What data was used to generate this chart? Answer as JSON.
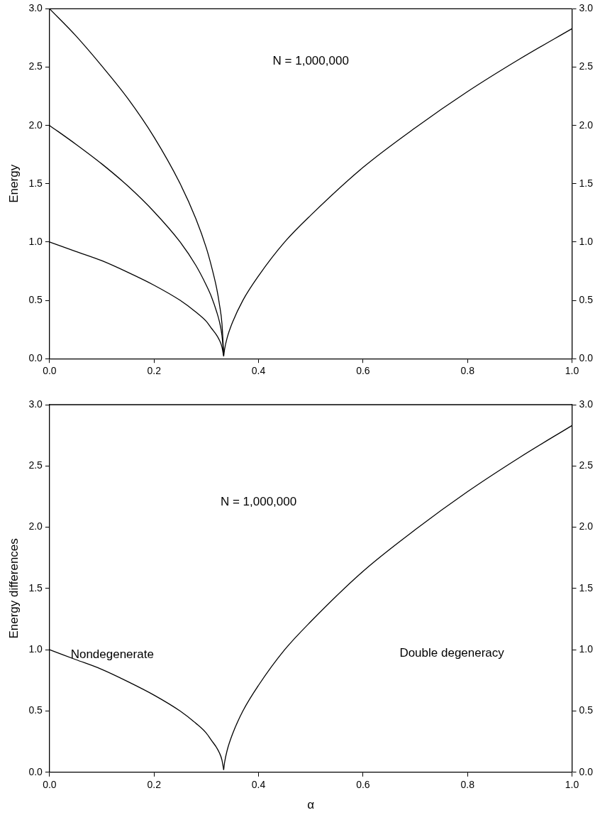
{
  "chart_data": [
    {
      "type": "line",
      "ylabel": "Energy",
      "xlim": [
        0,
        1
      ],
      "xticks": [
        {
          "value": 0,
          "label": "0.0"
        },
        {
          "value": 0.2,
          "label": "0.2"
        },
        {
          "value": 0.4,
          "label": "0.4"
        },
        {
          "value": 0.6,
          "label": "0.6"
        },
        {
          "value": 0.8,
          "label": "0.8"
        },
        {
          "value": 1,
          "label": "1.0"
        }
      ],
      "ylim": [
        0,
        3
      ],
      "yticks": [
        {
          "value": 0,
          "label": "0.0"
        },
        {
          "value": 0.5,
          "label": "0.5"
        },
        {
          "value": 1,
          "label": "1.0"
        },
        {
          "value": 1.5,
          "label": "1.5"
        },
        {
          "value": 2,
          "label": "2.0"
        },
        {
          "value": 2.5,
          "label": "2.5"
        },
        {
          "value": 3,
          "label": "3.0"
        }
      ],
      "y2lim": [
        0,
        3
      ],
      "y2ticks": [
        {
          "value": 0,
          "label": "0.0"
        },
        {
          "value": 0.5,
          "label": "0.5"
        },
        {
          "value": 1,
          "label": "1.0"
        },
        {
          "value": 1.5,
          "label": "1.5"
        },
        {
          "value": 2,
          "label": "2.0"
        },
        {
          "value": 2.5,
          "label": "2.5"
        },
        {
          "value": 3,
          "label": "3.0"
        }
      ],
      "grid": false,
      "legend": false,
      "marker": "none",
      "line_style": "solid",
      "annotations": [
        "N = 1,000,000"
      ],
      "series": [
        {
          "color": "#000000",
          "x": [
            0,
            0.05,
            0.1,
            0.15,
            0.2,
            0.25,
            0.28,
            0.3,
            0.31,
            0.32,
            0.325,
            0.33,
            0.3333
          ],
          "values": [
            3,
            2.77,
            2.51,
            2.23,
            1.9,
            1.5,
            1.2,
            0.95,
            0.79,
            0.6,
            0.47,
            0.3,
            0.04
          ]
        },
        {
          "color": "#000000",
          "x": [
            0,
            0.05,
            0.1,
            0.15,
            0.2,
            0.25,
            0.28,
            0.3,
            0.31,
            0.32,
            0.325,
            0.33,
            0.3333
          ],
          "values": [
            2,
            1.84,
            1.67,
            1.48,
            1.26,
            1,
            0.8,
            0.63,
            0.53,
            0.4,
            0.32,
            0.2,
            0.03
          ]
        },
        {
          "color": "#000000",
          "x": [
            0,
            0.05,
            0.1,
            0.15,
            0.2,
            0.25,
            0.28,
            0.3,
            0.31,
            0.32,
            0.325,
            0.33,
            0.3333
          ],
          "values": [
            1,
            0.92,
            0.84,
            0.74,
            0.63,
            0.5,
            0.4,
            0.32,
            0.26,
            0.2,
            0.16,
            0.1,
            0.02
          ]
        },
        {
          "color": "#000000",
          "x": [
            0.3333,
            0.335,
            0.34,
            0.35,
            0.37,
            0.4,
            0.45,
            0.5,
            0.6,
            0.7,
            0.8,
            0.9,
            1
          ],
          "values": [
            0.02,
            0.08,
            0.18,
            0.31,
            0.5,
            0.71,
            1,
            1.23,
            1.64,
            1.98,
            2.29,
            2.57,
            2.83
          ]
        }
      ]
    },
    {
      "type": "line",
      "xlabel": "α",
      "ylabel": "Energy differences",
      "xlim": [
        0,
        1
      ],
      "xticks": [
        {
          "value": 0,
          "label": "0.0"
        },
        {
          "value": 0.2,
          "label": "0.2"
        },
        {
          "value": 0.4,
          "label": "0.4"
        },
        {
          "value": 0.6,
          "label": "0.6"
        },
        {
          "value": 0.8,
          "label": "0.8"
        },
        {
          "value": 1,
          "label": "1.0"
        }
      ],
      "ylim": [
        0,
        3
      ],
      "yticks": [
        {
          "value": 0,
          "label": "0.0"
        },
        {
          "value": 0.5,
          "label": "0.5"
        },
        {
          "value": 1,
          "label": "1.0"
        },
        {
          "value": 1.5,
          "label": "1.5"
        },
        {
          "value": 2,
          "label": "2.0"
        },
        {
          "value": 2.5,
          "label": "2.5"
        },
        {
          "value": 3,
          "label": "3.0"
        }
      ],
      "y2lim": [
        0,
        3
      ],
      "y2ticks": [
        {
          "value": 0,
          "label": "0.0"
        },
        {
          "value": 0.5,
          "label": "0.5"
        },
        {
          "value": 1,
          "label": "1.0"
        },
        {
          "value": 1.5,
          "label": "1.5"
        },
        {
          "value": 2,
          "label": "2.0"
        },
        {
          "value": 2.5,
          "label": "2.5"
        },
        {
          "value": 3,
          "label": "3.0"
        }
      ],
      "grid": false,
      "legend": false,
      "marker": "none",
      "line_style": "solid",
      "annotations": [
        "N = 1,000,000",
        "Nondegenerate",
        "Double degeneracy"
      ],
      "series": [
        {
          "color": "#000000",
          "x": [
            0,
            0.05,
            0.1,
            0.15,
            0.2,
            0.25,
            0.28,
            0.3,
            0.31,
            0.32,
            0.325,
            0.33,
            0.3333
          ],
          "values": [
            1,
            0.92,
            0.84,
            0.74,
            0.63,
            0.5,
            0.4,
            0.32,
            0.26,
            0.2,
            0.16,
            0.1,
            0.02
          ]
        },
        {
          "color": "#000000",
          "x": [
            0.3333,
            0.335,
            0.34,
            0.35,
            0.37,
            0.4,
            0.45,
            0.5,
            0.6,
            0.7,
            0.8,
            0.9,
            1
          ],
          "values": [
            0.02,
            0.08,
            0.18,
            0.31,
            0.5,
            0.71,
            1,
            1.23,
            1.64,
            1.98,
            2.29,
            2.57,
            2.83
          ]
        }
      ]
    }
  ]
}
